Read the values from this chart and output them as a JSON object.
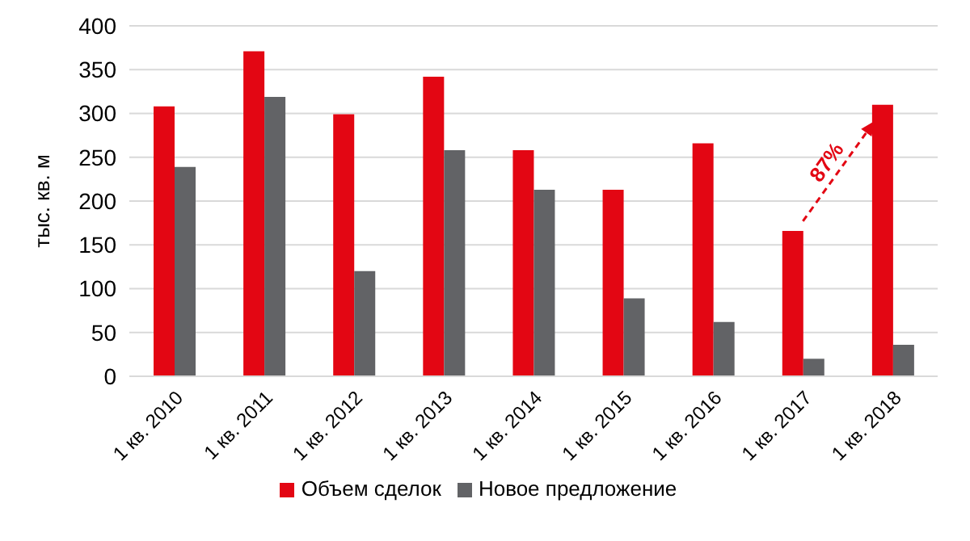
{
  "chart_data": {
    "type": "bar",
    "ylabel": "тыс. кв. м",
    "categories": [
      "1 кв. 2010",
      "1 кв. 2011",
      "1 кв. 2012",
      "1 кв. 2013",
      "1 кв. 2014",
      "1 кв. 2015",
      "1 кв. 2016",
      "1 кв. 2017",
      "1 кв. 2018"
    ],
    "series": [
      {
        "name": "Объем сделок",
        "color": "#e30613",
        "values": [
          308,
          371,
          299,
          342,
          258,
          213,
          266,
          166,
          310
        ]
      },
      {
        "name": "Новое предложение",
        "color": "#626366",
        "values": [
          239,
          319,
          120,
          258,
          213,
          89,
          62,
          20,
          36
        ]
      }
    ],
    "ylim": [
      0,
      400
    ],
    "yticks": [
      0,
      50,
      100,
      150,
      200,
      250,
      300,
      350,
      400
    ],
    "grid": "y",
    "legend": "bottom",
    "annotations": [
      "87%"
    ]
  }
}
